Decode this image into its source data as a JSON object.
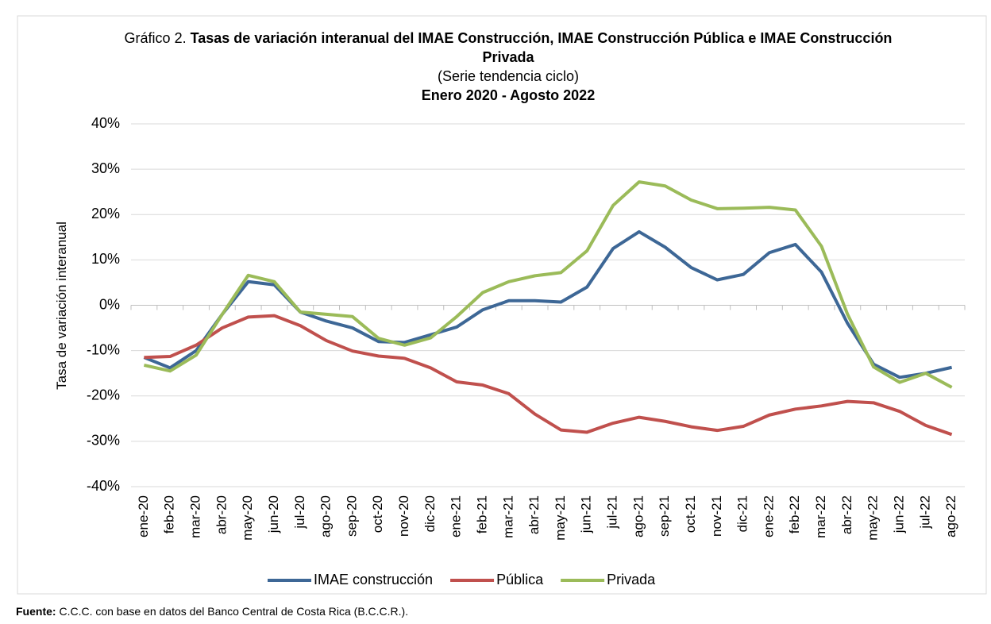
{
  "chart_data": {
    "type": "line",
    "title_prefix": "Gráfico 2.",
    "title": "Tasas de variación interanual del IMAE Construcción, IMAE Construcción Pública e IMAE Construcción Privada",
    "subtitle": "(Serie tendencia ciclo)",
    "period": "Enero 2020 - Agosto 2022",
    "y_label": "Tasa de variación interanual",
    "source_label": "Fuente:",
    "source": "C.C.C. con base en datos del Banco Central de Costa Rica (B.C.C.R.).",
    "categories": [
      "ene-20",
      "feb-20",
      "mar-20",
      "abr-20",
      "may-20",
      "jun-20",
      "jul-20",
      "ago-20",
      "sep-20",
      "oct-20",
      "nov-20",
      "dic-20",
      "ene-21",
      "feb-21",
      "mar-21",
      "abr-21",
      "may-21",
      "jun-21",
      "jul-21",
      "ago-21",
      "sep-21",
      "oct-21",
      "nov-21",
      "dic-21",
      "ene-22",
      "feb-22",
      "mar-22",
      "abr-22",
      "may-22",
      "jun-22",
      "jul-22",
      "ago-22"
    ],
    "series": [
      {
        "name": "IMAE construcción",
        "color": "#3d6796",
        "values": [
          -11.5,
          -13.8,
          -10,
          -2,
          5.2,
          4.5,
          -1.5,
          -3.5,
          -5,
          -8,
          -8.2,
          -6.5,
          -4.8,
          -1,
          1,
          1,
          0.7,
          4,
          12.5,
          16.2,
          12.8,
          8.3,
          5.6,
          6.8,
          11.6,
          13.4,
          7.3,
          -4,
          -13,
          -15.9,
          -15,
          -13.7
        ]
      },
      {
        "name": "Pública",
        "color": "#c0504d",
        "values": [
          -11.5,
          -11.3,
          -8.8,
          -5,
          -2.6,
          -2.3,
          -4.5,
          -7.8,
          -10.1,
          -11.2,
          -11.7,
          -13.8,
          -16.9,
          -17.6,
          -19.5,
          -24,
          -27.5,
          -28,
          -26,
          -24.7,
          -25.6,
          -26.8,
          -27.6,
          -26.7,
          -24.2,
          -22.9,
          -22.2,
          -21.2,
          -21.5,
          -23.4,
          -26.5,
          -28.5
        ]
      },
      {
        "name": "Privada",
        "color": "#9bbb59",
        "values": [
          -13.2,
          -14.5,
          -11,
          -2,
          6.6,
          5.2,
          -1.5,
          -2,
          -2.5,
          -7.3,
          -8.8,
          -7.2,
          -2.5,
          2.8,
          5.2,
          6.5,
          7.2,
          12,
          22,
          27.2,
          26.3,
          23.2,
          21.3,
          21.4,
          21.6,
          21,
          13,
          -2,
          -13.6,
          -17,
          -15,
          -18.1
        ]
      }
    ],
    "ylim": [
      -40,
      40
    ],
    "yticks": [
      {
        "value": -40,
        "label": "-40%"
      },
      {
        "value": -30,
        "label": "-30%"
      },
      {
        "value": -20,
        "label": "-20%"
      },
      {
        "value": -10,
        "label": "-10%"
      },
      {
        "value": 0,
        "label": "0%"
      },
      {
        "value": 10,
        "label": "10%"
      },
      {
        "value": 20,
        "label": "20%"
      },
      {
        "value": 30,
        "label": "30%"
      },
      {
        "value": 40,
        "label": "40%"
      }
    ],
    "grid": true,
    "legend": "bottom"
  }
}
